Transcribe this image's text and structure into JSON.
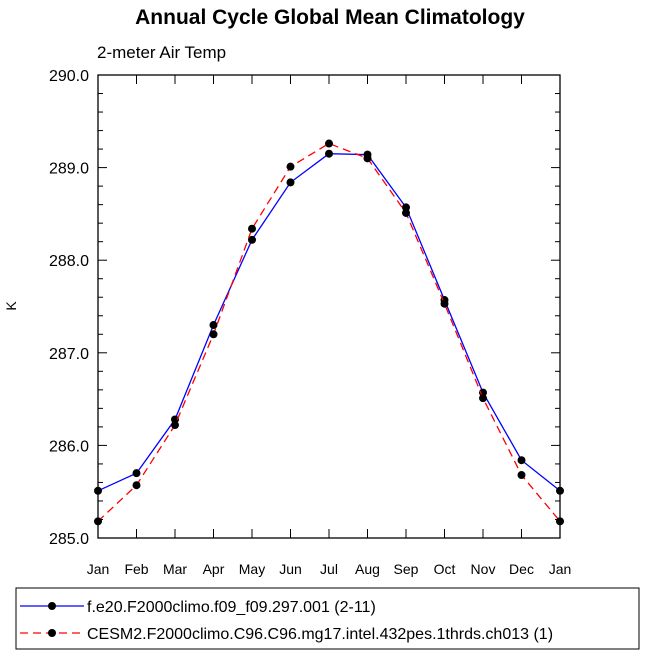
{
  "chart_data": {
    "type": "line",
    "title": "Annual Cycle Global Mean Climatology",
    "subtitle": "2-meter Air Temp",
    "xlabel": "",
    "ylabel": "K",
    "categories": [
      "Jan",
      "Feb",
      "Mar",
      "Apr",
      "May",
      "Jun",
      "Jul",
      "Aug",
      "Sep",
      "Oct",
      "Nov",
      "Dec",
      "Jan"
    ],
    "ylim": [
      285.0,
      290.0
    ],
    "yticks": [
      "285.0",
      "286.0",
      "287.0",
      "288.0",
      "289.0",
      "290.0"
    ],
    "grid": false,
    "legend_position": "bottom",
    "series": [
      {
        "name": "f.e20.F2000climo.f09_f09.297.001 (2-11)",
        "color": "#0000ff",
        "line_style": "solid",
        "marker": "filled-circle",
        "values": [
          285.51,
          285.7,
          286.28,
          287.3,
          288.22,
          288.84,
          289.15,
          289.14,
          288.57,
          287.57,
          286.57,
          285.84,
          285.51
        ]
      },
      {
        "name": "CESM2.F2000climo.C96.C96.mg17.intel.432pes.1thrds.ch013 (1)",
        "color": "#ff0000",
        "line_style": "dashed",
        "marker": "filled-circle",
        "values": [
          285.18,
          285.57,
          286.22,
          287.2,
          288.34,
          289.01,
          289.26,
          289.1,
          288.51,
          287.53,
          286.51,
          285.68,
          285.18
        ]
      }
    ]
  }
}
